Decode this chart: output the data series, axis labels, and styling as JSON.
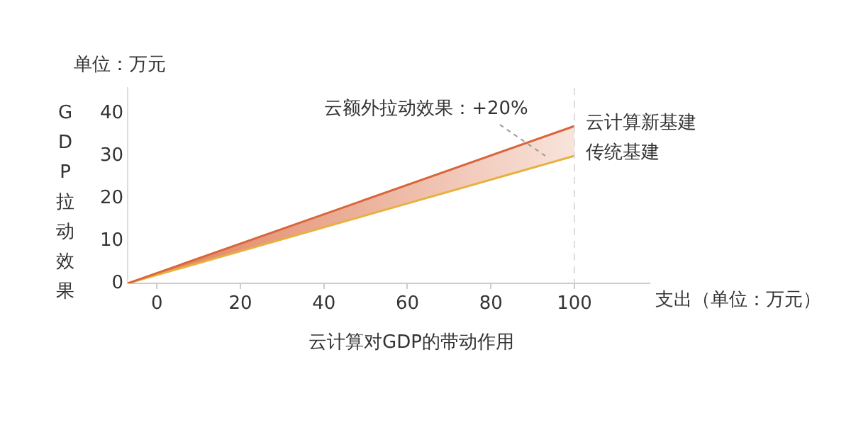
{
  "chart_data": {
    "type": "line",
    "title": "云计算对GDP的带动作用",
    "xlabel": "支出（单位：万元）",
    "ylabel": "GDP拉动效果",
    "annotations": [
      "单位：万元",
      "云额外拉动效果：+20%"
    ],
    "x": [
      -7,
      100
    ],
    "series": [
      {
        "name": "云计算新基建",
        "color": "#d9663a",
        "values": [
          0,
          37
        ],
        "lower": [
          0,
          30
        ],
        "upper": [
          0,
          37
        ]
      },
      {
        "name": "传统基建",
        "color": "#e8b040",
        "values": [
          0,
          30
        ]
      }
    ],
    "xlim": [
      -7,
      118
    ],
    "xticks": [
      0,
      20,
      40,
      60,
      80,
      100
    ],
    "ylim": [
      0,
      46
    ],
    "yticks": [
      0,
      10,
      20,
      30,
      40
    ],
    "grid": false,
    "legend": false,
    "marker": "none",
    "line_style": "solid",
    "ref_lines": [
      {
        "axis": "x",
        "value": 100,
        "color": "#dddddd",
        "line_style": "dashed"
      }
    ]
  }
}
